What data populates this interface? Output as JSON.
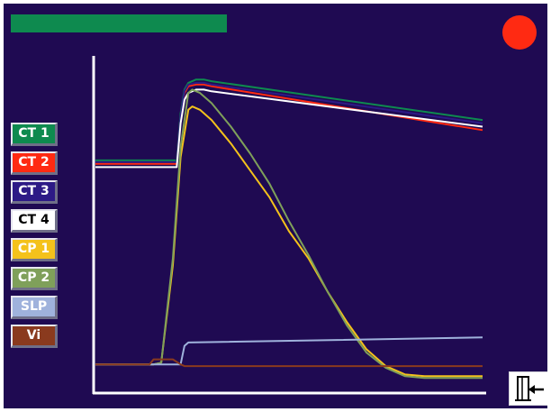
{
  "legend": [
    {
      "id": "ct1",
      "label": "CT 1",
      "color": "#0e8a4f",
      "text_color": "#ffffff"
    },
    {
      "id": "ct2",
      "label": "CT 2",
      "color": "#ff2a12",
      "text_color": "#ffffff"
    },
    {
      "id": "ct3",
      "label": "CT 3",
      "color": "#2d1a86",
      "text_color": "#ffffff"
    },
    {
      "id": "ct4",
      "label": "CT 4",
      "color": "#ffffff",
      "text_color": "#000000"
    },
    {
      "id": "cp1",
      "label": "CP 1",
      "color": "#f4c21b",
      "text_color": "#ffffff"
    },
    {
      "id": "cp2",
      "label": "CP 2",
      "color": "#7fa05a",
      "text_color": "#ffffff"
    },
    {
      "id": "slp",
      "label": "SLP",
      "color": "#9fb2dc",
      "text_color": "#ffffff"
    },
    {
      "id": "vi",
      "label": "Vi",
      "color": "#8a3a1e",
      "text_color": "#ffffff"
    }
  ],
  "colors": {
    "background": "#1f0a52",
    "axis": "#ffffff",
    "top_bar": "#0e8a4f",
    "record_indicator": "#ff2a12"
  },
  "icons": {
    "record": "record-dot-icon",
    "exit": "exit-door-icon"
  },
  "chart_data": {
    "type": "line",
    "xlim": [
      0,
      100
    ],
    "ylim": [
      0,
      100
    ],
    "grid": false,
    "legend_placement": "left",
    "series": [
      {
        "id": "ct1",
        "x": [
          0,
          21,
          22,
          23,
          24,
          26,
          28,
          30,
          100
        ],
        "y": [
          69,
          69,
          83,
          90,
          92,
          93,
          93,
          92.5,
          81
        ]
      },
      {
        "id": "ct2",
        "x": [
          0,
          21,
          22,
          23,
          24,
          26,
          28,
          30,
          100
        ],
        "y": [
          68,
          68,
          81,
          89,
          91,
          91.5,
          91.5,
          91,
          78
        ]
      },
      {
        "id": "ct3",
        "x": [
          0,
          21,
          22,
          23,
          24,
          26,
          28,
          30,
          100
        ],
        "y": [
          68.5,
          68.5,
          82,
          89.5,
          91.5,
          92,
          92,
          91.5,
          80
        ]
      },
      {
        "id": "ct4",
        "x": [
          0,
          21,
          22,
          23,
          24,
          26,
          28,
          30,
          100
        ],
        "y": [
          67,
          67,
          80,
          87,
          89,
          90,
          90,
          89.5,
          79
        ]
      },
      {
        "id": "cp1",
        "x": [
          0,
          15,
          17,
          20,
          22,
          24,
          25,
          27,
          30,
          35,
          40,
          45,
          50,
          55,
          60,
          65,
          70,
          75,
          80,
          85,
          90,
          100
        ],
        "y": [
          8.5,
          8.5,
          9,
          38,
          70,
          84,
          85,
          84,
          81,
          74,
          66,
          58,
          48,
          40,
          30,
          21,
          13,
          8,
          5.5,
          5,
          5,
          5
        ]
      },
      {
        "id": "cp2",
        "x": [
          0,
          15,
          17,
          20,
          22,
          24,
          25,
          27,
          30,
          35,
          40,
          45,
          50,
          55,
          60,
          65,
          70,
          75,
          80,
          85,
          90,
          100
        ],
        "y": [
          8.5,
          8.5,
          9,
          40,
          73,
          89,
          90,
          89,
          86,
          79,
          71,
          62,
          51,
          41,
          30,
          20,
          12,
          7.5,
          5,
          4.5,
          4.5,
          4.5
        ]
      },
      {
        "id": "slp",
        "x": [
          0,
          22,
          23,
          24,
          100
        ],
        "y": [
          8.5,
          8.5,
          14,
          15,
          16.5
        ]
      },
      {
        "id": "vi",
        "x": [
          0,
          14,
          15,
          20,
          22,
          23,
          100
        ],
        "y": [
          8.5,
          8.5,
          10,
          10,
          8.5,
          8,
          8
        ]
      }
    ]
  }
}
